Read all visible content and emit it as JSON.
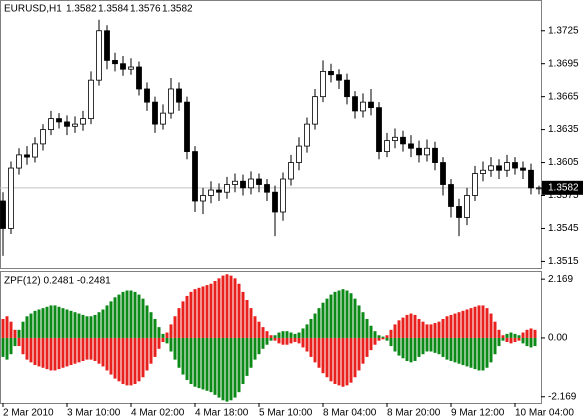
{
  "chart_data": [
    {
      "type": "candlestick",
      "symbol": "EURUSD,H1",
      "xlim": [
        -0.75,
        134.75
      ],
      "ylim": [
        1.3509,
        1.3753
      ],
      "yticks": [
        1.3725,
        1.3695,
        1.3665,
        1.3635,
        1.3605,
        1.3575,
        1.3545,
        1.3515
      ],
      "xticks": [
        {
          "value": 0,
          "label": "2 Mar 2010"
        },
        {
          "value": 16,
          "label": "3 Mar 10:00"
        },
        {
          "value": 32,
          "label": "4 Mar 02:00"
        },
        {
          "value": 48,
          "label": "4 Mar 18:00"
        },
        {
          "value": 64,
          "label": "5 Mar 10:00"
        },
        {
          "value": 80,
          "label": "8 Mar 04:00"
        },
        {
          "value": 96,
          "label": "8 Mar 20:00"
        },
        {
          "value": 112,
          "label": "9 Mar 12:00"
        },
        {
          "value": 128,
          "label": "10 Mar 04:00"
        }
      ],
      "up_color": "#ffffff",
      "down_color": "#000000",
      "line_color": "#000000",
      "x": [
        0,
        2,
        4,
        6,
        8,
        10,
        12,
        14,
        16,
        18,
        20,
        22,
        24,
        26,
        28,
        30,
        32,
        34,
        36,
        38,
        40,
        42,
        44,
        46,
        48,
        50,
        52,
        54,
        56,
        58,
        60,
        62,
        64,
        66,
        68,
        70,
        72,
        74,
        76,
        78,
        80,
        82,
        84,
        86,
        88,
        90,
        92,
        94,
        96,
        98,
        100,
        102,
        104,
        106,
        108,
        110,
        112,
        114,
        116,
        118,
        120,
        122,
        124,
        126,
        128,
        130,
        132,
        134
      ],
      "open": [
        1.357,
        1.3545,
        1.36,
        1.3612,
        1.361,
        1.3622,
        1.3635,
        1.3645,
        1.3642,
        1.3638,
        1.364,
        1.3645,
        1.368,
        1.3725,
        1.3698,
        1.3695,
        1.369,
        1.3692,
        1.3672,
        1.366,
        1.364,
        1.365,
        1.3672,
        1.366,
        1.3615,
        1.357,
        1.3575,
        1.358,
        1.3578,
        1.3585,
        1.3588,
        1.3582,
        1.359,
        1.3585,
        1.3578,
        1.356,
        1.359,
        1.3605,
        1.362,
        1.364,
        1.3665,
        1.3688,
        1.3685,
        1.368,
        1.3665,
        1.3652,
        1.366,
        1.3655,
        1.3615,
        1.3625,
        1.3628,
        1.3622,
        1.3618,
        1.3612,
        1.3618,
        1.3605,
        1.3585,
        1.3565,
        1.3555,
        1.3575,
        1.3595,
        1.3598,
        1.3602,
        1.3598,
        1.3605,
        1.36,
        1.3598,
        1.3582
      ],
      "high": [
        1.3578,
        1.3606,
        1.3618,
        1.362,
        1.3628,
        1.364,
        1.3652,
        1.365,
        1.3648,
        1.3647,
        1.3652,
        1.3688,
        1.3735,
        1.373,
        1.3705,
        1.3702,
        1.37,
        1.3697,
        1.3678,
        1.3665,
        1.3658,
        1.3682,
        1.3678,
        1.3665,
        1.362,
        1.3582,
        1.3588,
        1.3586,
        1.3592,
        1.3595,
        1.3594,
        1.3597,
        1.3595,
        1.359,
        1.3584,
        1.3596,
        1.3612,
        1.3628,
        1.3646,
        1.3672,
        1.3698,
        1.3695,
        1.369,
        1.3686,
        1.367,
        1.3668,
        1.3672,
        1.366,
        1.3632,
        1.3636,
        1.3634,
        1.363,
        1.3625,
        1.3626,
        1.3624,
        1.361,
        1.359,
        1.3572,
        1.3582,
        1.3602,
        1.3606,
        1.361,
        1.3608,
        1.3612,
        1.361,
        1.3606,
        1.3604,
        1.3584
      ],
      "low": [
        1.352,
        1.354,
        1.3594,
        1.3603,
        1.3605,
        1.3616,
        1.363,
        1.3636,
        1.363,
        1.3632,
        1.3634,
        1.364,
        1.3675,
        1.369,
        1.3688,
        1.3684,
        1.3685,
        1.3666,
        1.3652,
        1.3632,
        1.3635,
        1.3645,
        1.3652,
        1.3608,
        1.356,
        1.3558,
        1.3568,
        1.357,
        1.3572,
        1.3578,
        1.3575,
        1.3576,
        1.3578,
        1.357,
        1.3538,
        1.3552,
        1.3584,
        1.3598,
        1.3614,
        1.3635,
        1.366,
        1.3678,
        1.3672,
        1.3658,
        1.3645,
        1.3646,
        1.3648,
        1.3608,
        1.361,
        1.3618,
        1.3615,
        1.361,
        1.3605,
        1.3606,
        1.3598,
        1.3575,
        1.3555,
        1.3538,
        1.3548,
        1.357,
        1.3588,
        1.3592,
        1.359,
        1.3592,
        1.3594,
        1.359,
        1.3576,
        1.3576
      ],
      "close": [
        1.3545,
        1.36,
        1.3612,
        1.361,
        1.3622,
        1.3635,
        1.3645,
        1.3642,
        1.3638,
        1.364,
        1.3645,
        1.368,
        1.3725,
        1.3698,
        1.3695,
        1.369,
        1.3692,
        1.3672,
        1.366,
        1.364,
        1.365,
        1.3672,
        1.366,
        1.3615,
        1.357,
        1.3575,
        1.358,
        1.3578,
        1.3585,
        1.3588,
        1.3582,
        1.359,
        1.3585,
        1.3578,
        1.356,
        1.359,
        1.3605,
        1.362,
        1.364,
        1.3665,
        1.3688,
        1.3685,
        1.368,
        1.3665,
        1.3652,
        1.366,
        1.3655,
        1.3615,
        1.3625,
        1.3628,
        1.3622,
        1.3618,
        1.3612,
        1.3618,
        1.3605,
        1.3585,
        1.3565,
        1.3555,
        1.3575,
        1.3595,
        1.3598,
        1.3602,
        1.3598,
        1.3605,
        1.36,
        1.3598,
        1.3582,
        1.3582
      ]
    },
    {
      "type": "histogram",
      "label": "ZPF(12) 0.2481 -0.2481",
      "ylim": [
        -2.4,
        2.47
      ],
      "yticks": [
        2.169,
        {
          "value": 0,
          "label": "0.00"
        },
        -2.169
      ],
      "positive_color": "#0c8a18",
      "negative_color": "#e8201e",
      "values": [
        -0.7,
        -0.8,
        -0.6,
        -0.3,
        0.3,
        0.6,
        0.8,
        0.9,
        1.0,
        1.05,
        1.1,
        1.15,
        1.2,
        1.2,
        1.15,
        1.1,
        1.05,
        1.0,
        0.95,
        0.9,
        0.85,
        0.8,
        0.8,
        0.85,
        0.95,
        1.05,
        1.2,
        1.35,
        1.5,
        1.6,
        1.7,
        1.75,
        1.75,
        1.7,
        1.6,
        1.45,
        1.2,
        0.95,
        0.7,
        0.4,
        0.15,
        -0.2,
        -0.5,
        -0.8,
        -1.1,
        -1.35,
        -1.55,
        -1.7,
        -1.8,
        -1.85,
        -1.9,
        -1.95,
        -2.0,
        -2.1,
        -2.2,
        -2.3,
        -2.35,
        -2.3,
        -2.2,
        -2.0,
        -1.7,
        -1.4,
        -1.1,
        -0.8,
        -0.6,
        -0.4,
        -0.25,
        -0.1,
        0.1,
        0.2,
        0.25,
        0.25,
        0.2,
        0.15,
        0.2,
        0.35,
        0.5,
        0.7,
        0.9,
        1.1,
        1.3,
        1.45,
        1.6,
        1.7,
        1.75,
        1.8,
        1.75,
        1.65,
        1.45,
        1.2,
        0.95,
        0.7,
        0.45,
        0.25,
        0.1,
        0.05,
        -0.1,
        -0.3,
        -0.5,
        -0.65,
        -0.75,
        -0.85,
        -0.9,
        -0.85,
        -0.7,
        -0.6,
        -0.5,
        -0.5,
        -0.55,
        -0.6,
        -0.7,
        -0.8,
        -0.85,
        -0.9,
        -0.95,
        -1.0,
        -1.05,
        -1.1,
        -1.15,
        -1.2,
        -1.2,
        -1.1,
        -0.9,
        -0.6,
        -0.3,
        -0.1,
        0.15,
        0.2,
        0.15,
        0.1,
        -0.2,
        -0.3,
        -0.35,
        -0.3
      ]
    }
  ]
}
